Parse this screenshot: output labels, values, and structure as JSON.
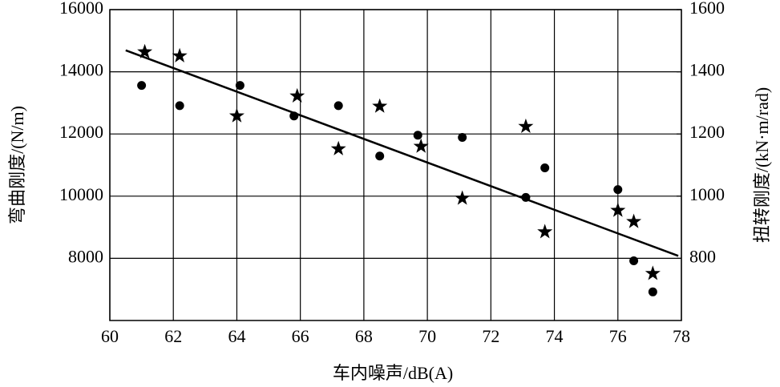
{
  "chart_data": {
    "type": "scatter",
    "xlabel": "车内噪声/dB(A)",
    "ylabel": "弯曲刚度/(N/m)",
    "y2label": "扭转刚度/(kN·m/rad)",
    "xlim": [
      60,
      78
    ],
    "xticks": [
      60,
      62,
      64,
      66,
      68,
      70,
      72,
      74,
      76,
      78
    ],
    "ylim": [
      6000,
      16000
    ],
    "yticks": [
      8000,
      10000,
      12000,
      14000,
      16000
    ],
    "y2lim": [
      600,
      1600
    ],
    "y2ticks": [
      800,
      1000,
      1200,
      1400,
      1600
    ],
    "grid": true,
    "series": [
      {
        "marker": "circle",
        "color": "#000000",
        "x": [
          61.0,
          62.2,
          64.1,
          65.8,
          67.2,
          68.5,
          69.7,
          71.1,
          73.1,
          73.7,
          76.0,
          76.5,
          77.1
        ],
        "values": [
          13560,
          12910,
          13560,
          12580,
          12910,
          11290,
          11960,
          11890,
          9960,
          10910,
          10210,
          7920,
          6920
        ]
      },
      {
        "marker": "star",
        "color": "#000000",
        "axis": "y2",
        "x": [
          61.1,
          62.2,
          64.0,
          65.9,
          67.2,
          68.5,
          69.8,
          71.1,
          73.1,
          73.7,
          76.0,
          76.5,
          77.1
        ],
        "values": [
          1464,
          1451,
          1258,
          1322,
          1152,
          1289,
          1160,
          993,
          1224,
          885,
          954,
          918,
          751
        ]
      },
      {
        "marker": "line",
        "color": "#000000",
        "x": [
          60.5,
          77.9
        ],
        "values": [
          14690,
          8080
        ]
      }
    ]
  }
}
